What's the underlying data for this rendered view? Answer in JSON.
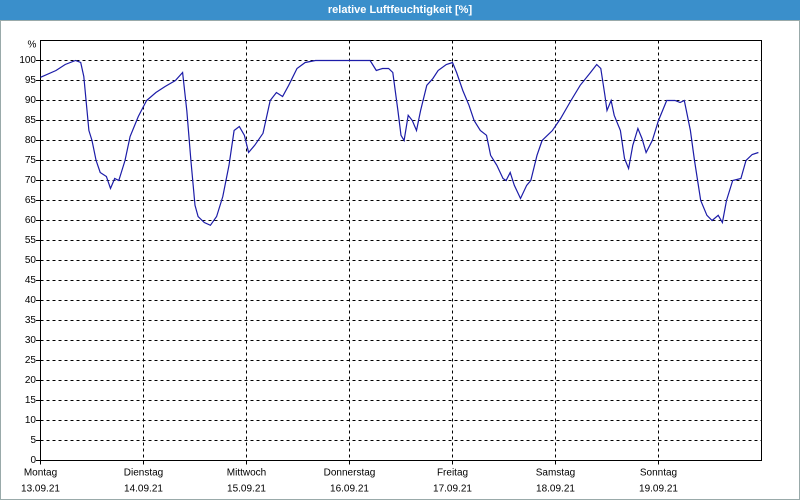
{
  "chart_data": {
    "type": "line",
    "title": "relative Luftfeuchtigkeit [%]",
    "y_axis_label": "%",
    "x": [
      0,
      0.15,
      0.24,
      0.34,
      0.39,
      0.42,
      0.47,
      0.5,
      0.54,
      0.58,
      0.64,
      0.68,
      0.72,
      0.76,
      0.82,
      0.87,
      0.95,
      1.03,
      1.12,
      1.21,
      1.31,
      1.38,
      1.42,
      1.46,
      1.5,
      1.53,
      1.59,
      1.65,
      1.71,
      1.77,
      1.83,
      1.88,
      1.93,
      1.98,
      2.02,
      2.08,
      2.16,
      2.23,
      2.29,
      2.35,
      2.41,
      2.49,
      2.57,
      2.67,
      3.2,
      3.26,
      3.32,
      3.38,
      3.42,
      3.47,
      3.5,
      3.53,
      3.57,
      3.61,
      3.65,
      3.69,
      3.75,
      3.81,
      3.86,
      3.94,
      4.0,
      4.04,
      4.1,
      4.16,
      4.21,
      4.27,
      4.33,
      4.37,
      4.43,
      4.49,
      4.52,
      4.56,
      4.6,
      4.66,
      4.72,
      4.76,
      4.82,
      4.87,
      4.97,
      5.05,
      5.15,
      5.24,
      5.34,
      5.4,
      5.44,
      5.48,
      5.5,
      5.54,
      5.57,
      5.63,
      5.67,
      5.71,
      5.75,
      5.8,
      5.84,
      5.88,
      5.94,
      6.0,
      6.08,
      6.16,
      6.21,
      6.25,
      6.31,
      6.35,
      6.41,
      6.47,
      6.52,
      6.58,
      6.62,
      6.66,
      6.72,
      6.8,
      6.85,
      6.91,
      6.97
    ],
    "series": [
      {
        "name": "relative Luftfeuchtigkeit",
        "color": "#1c1ca8",
        "values": [
          95.8,
          97.5,
          99,
          100,
          99.5,
          96,
          82.5,
          80,
          75,
          72,
          71,
          68,
          70.5,
          70,
          75,
          81,
          86,
          90,
          92,
          93.5,
          95,
          97,
          87.5,
          75,
          63.8,
          61,
          59.5,
          58.8,
          61,
          66,
          73.8,
          82.5,
          83.5,
          81.3,
          77,
          78.8,
          81.8,
          90,
          92,
          91,
          93.8,
          98,
          99.5,
          100,
          100,
          97.5,
          98,
          98,
          97,
          87.5,
          81.3,
          80,
          86.3,
          85,
          82.5,
          87.5,
          93.8,
          95.5,
          97.5,
          99,
          99.5,
          97,
          92.5,
          88.8,
          85,
          82.5,
          81.3,
          76.3,
          73.8,
          70.5,
          70,
          72,
          68.8,
          65.5,
          68.8,
          70,
          76.3,
          80,
          82.5,
          85.5,
          90,
          93.8,
          97,
          99,
          98,
          91.3,
          87.5,
          90,
          86.3,
          82.5,
          75.5,
          73,
          78.8,
          83,
          80.5,
          77,
          80,
          85,
          90,
          90,
          89.5,
          90,
          82.5,
          75,
          65,
          61.3,
          60,
          61.3,
          59.5,
          65,
          70,
          70.5,
          75,
          76.5,
          77
        ]
      }
    ],
    "xlim": [
      0,
      7
    ],
    "xticks": [
      {
        "value": 0,
        "label": [
          "Montag",
          "13.09.21"
        ]
      },
      {
        "value": 1,
        "label": [
          "Dienstag",
          "14.09.21"
        ]
      },
      {
        "value": 2,
        "label": [
          "Mittwoch",
          "15.09.21"
        ]
      },
      {
        "value": 3,
        "label": [
          "Donnerstag",
          "16.09.21"
        ]
      },
      {
        "value": 4,
        "label": [
          "Freitag",
          "17.09.21"
        ]
      },
      {
        "value": 5,
        "label": [
          "Samstag",
          "18.09.21"
        ]
      },
      {
        "value": 6,
        "label": [
          "Sonntag",
          "19.09.21"
        ]
      }
    ],
    "ylim": [
      0,
      105
    ],
    "yticks": [
      0,
      5,
      10,
      15,
      20,
      25,
      30,
      35,
      40,
      45,
      50,
      55,
      60,
      65,
      70,
      75,
      80,
      85,
      90,
      95,
      100
    ],
    "grid": true
  }
}
